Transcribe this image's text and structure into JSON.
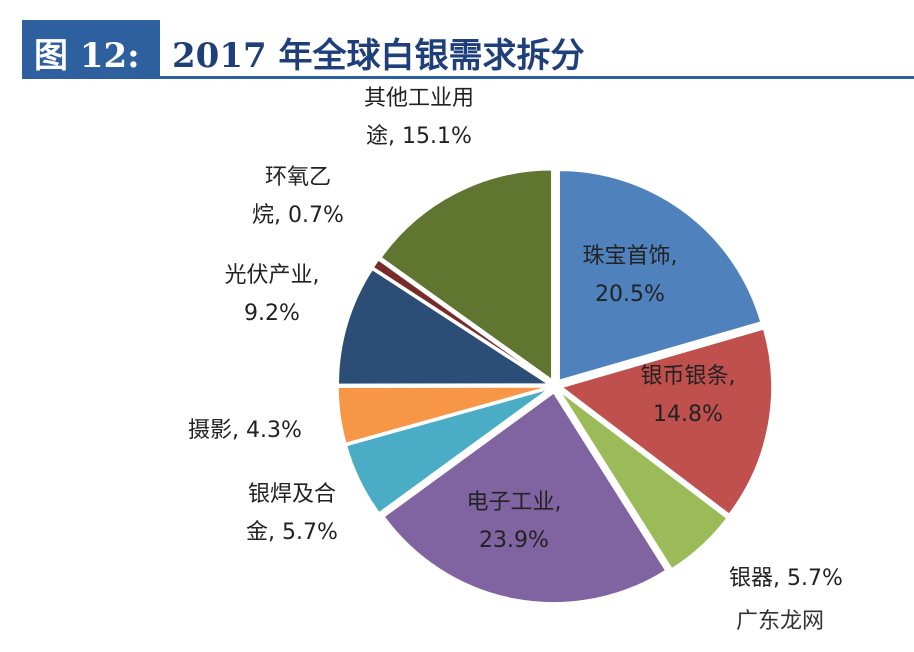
{
  "header": {
    "figure_no": "图 12:",
    "title": "2017 年全球白银需求拆分"
  },
  "chart_data": {
    "type": "pie",
    "title": "2017 年全球白银需求拆分",
    "slices": [
      {
        "name": "珠宝首饰",
        "value": 20.5,
        "color": "#4f81bd"
      },
      {
        "name": "银币银条",
        "value": 14.8,
        "color": "#c0504d"
      },
      {
        "name": "银器",
        "value": 5.7,
        "color": "#9bbb59"
      },
      {
        "name": "电子工业",
        "value": 23.9,
        "color": "#8064a2"
      },
      {
        "name": "银焊及合金",
        "value": 5.7,
        "color": "#4bacc6"
      },
      {
        "name": "摄影",
        "value": 4.3,
        "color": "#f79646"
      },
      {
        "name": "光伏产业",
        "value": 9.2,
        "color": "#2c4d75"
      },
      {
        "name": "环氧乙烷",
        "value": 0.7,
        "color": "#772c2a"
      },
      {
        "name": "其他工业用途",
        "value": 15.1,
        "color": "#5f7530"
      }
    ],
    "labels": [
      [
        "珠宝首饰,",
        "20.5%"
      ],
      [
        "银币银条,",
        "14.8%"
      ],
      [
        "银器, 5.7%"
      ],
      [
        "电子工业,",
        "23.9%"
      ],
      [
        "银焊及合",
        "金, 5.7%"
      ],
      [
        "摄影, 4.3%"
      ],
      [
        "光伏产业,",
        "9.2%"
      ],
      [
        "环氧乙",
        "烷, 0.7%"
      ],
      [
        "其他工业用",
        "途, 15.1%"
      ]
    ]
  },
  "watermark": "广东龙网"
}
